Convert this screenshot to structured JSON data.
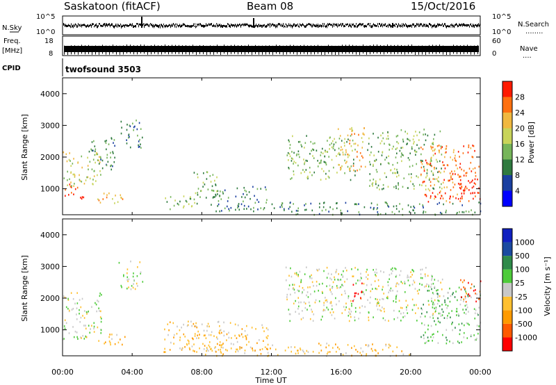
{
  "header": {
    "station": "Saskatoon (fitACF)",
    "beam": "Beam 08",
    "date": "15/Oct/2016"
  },
  "sky_panel": {
    "label": "N.Sky",
    "right_label": "N.Search",
    "right_marker": "........",
    "ticks_left": [
      "10^5",
      "10^0"
    ],
    "ticks_right": [
      "10^5",
      "10^0"
    ]
  },
  "freq_panel": {
    "label_top": "Freq.",
    "label_unit": "[MHz]",
    "ticks_left": [
      "18",
      "8"
    ],
    "right_label": "Nave",
    "right_marker": "....",
    "ticks_right": [
      "60",
      "0"
    ]
  },
  "cpid_panel": {
    "label": "CPID",
    "program": "twofsound 3503"
  },
  "time_axis": {
    "label": "Time UT",
    "ticks": [
      "00:00",
      "04:00",
      "08:00",
      "12:00",
      "16:00",
      "20:00",
      "00:00"
    ]
  },
  "chart_data": [
    {
      "type": "heatmap",
      "name": "power",
      "ylabel": "Slant Range [km]",
      "yticks": [
        "4000",
        "3000",
        "2000",
        "1000"
      ],
      "ylim": [
        180,
        4500
      ],
      "xlim_hours": [
        0,
        24
      ],
      "colorbar": {
        "label": "Power [dB]",
        "ticks": [
          "28",
          "24",
          "20",
          "16",
          "12",
          "8",
          "4"
        ],
        "colors": [
          "#0000ff",
          "#1a3fa0",
          "#2f7a3f",
          "#76b55a",
          "#c8d45a",
          "#f0b840",
          "#ff7010",
          "#ff1a00"
        ]
      },
      "echo_regions": [
        {
          "t0": 0.1,
          "t1": 1.2,
          "r0": 700,
          "r1": 1200,
          "level": 7
        },
        {
          "t0": 0.0,
          "t1": 2.2,
          "r0": 1100,
          "r1": 2200,
          "level": 4
        },
        {
          "t0": 2.0,
          "t1": 3.6,
          "r0": 500,
          "r1": 900,
          "level": 5
        },
        {
          "t0": 1.5,
          "t1": 3.0,
          "r0": 1600,
          "r1": 2700,
          "level": 2
        },
        {
          "t0": 3.2,
          "t1": 4.6,
          "r0": 2300,
          "r1": 3200,
          "level": 2
        },
        {
          "t0": 5.8,
          "t1": 7.9,
          "r0": 350,
          "r1": 800,
          "level": 3
        },
        {
          "t0": 7.5,
          "t1": 9.0,
          "r0": 700,
          "r1": 1600,
          "level": 3
        },
        {
          "t0": 8.5,
          "t1": 11.8,
          "r0": 300,
          "r1": 1100,
          "level": 2
        },
        {
          "t0": 12.8,
          "t1": 16.8,
          "r0": 1300,
          "r1": 2700,
          "level": 3
        },
        {
          "t0": 15.8,
          "t1": 17.4,
          "r0": 1600,
          "r1": 3000,
          "level": 5
        },
        {
          "t0": 17.5,
          "t1": 21.8,
          "r0": 1000,
          "r1": 2900,
          "level": 3
        },
        {
          "t0": 20.5,
          "t1": 23.9,
          "r0": 600,
          "r1": 2400,
          "level": 6
        },
        {
          "t0": 22.2,
          "t1": 24.0,
          "r0": 700,
          "r1": 1500,
          "level": 7
        },
        {
          "t0": 12.0,
          "t1": 24.0,
          "r0": 200,
          "r1": 600,
          "level": 2
        }
      ]
    },
    {
      "type": "heatmap",
      "name": "velocity",
      "ylabel": "Slant Range [km]",
      "yticks": [
        "4000",
        "3000",
        "2000",
        "1000"
      ],
      "ylim": [
        180,
        4500
      ],
      "xlim_hours": [
        0,
        24
      ],
      "colorbar": {
        "label": "Velocity [m s⁻¹]",
        "ticks": [
          "1000",
          "500",
          "100",
          "25",
          "-25",
          "-100",
          "-500",
          "-1000"
        ],
        "colors": [
          "#ff0000",
          "#ff5a00",
          "#ff9a00",
          "#ffc030",
          "#c8c8c8",
          "#4ecb3a",
          "#2f8a4a",
          "#1a4aa0",
          "#1020c0"
        ]
      },
      "echo_regions": [
        {
          "t0": 0.0,
          "t1": 2.2,
          "r0": 700,
          "r1": 2200,
          "level": 4
        },
        {
          "t0": 2.0,
          "t1": 3.6,
          "r0": 500,
          "r1": 900,
          "level": 3
        },
        {
          "t0": 3.2,
          "t1": 4.6,
          "r0": 2300,
          "r1": 3200,
          "level": 4
        },
        {
          "t0": 5.8,
          "t1": 11.8,
          "r0": 300,
          "r1": 1300,
          "level": 3
        },
        {
          "t0": 12.8,
          "t1": 21.8,
          "r0": 1300,
          "r1": 3000,
          "level": 4
        },
        {
          "t0": 16.6,
          "t1": 17.4,
          "r0": 1900,
          "r1": 2500,
          "level": 0
        },
        {
          "t0": 20.5,
          "t1": 24.0,
          "r0": 600,
          "r1": 2400,
          "level": 5
        },
        {
          "t0": 22.8,
          "t1": 24.0,
          "r0": 1800,
          "r1": 2600,
          "level": 1
        },
        {
          "t0": 8.0,
          "t1": 20.0,
          "r0": 200,
          "r1": 600,
          "level": 3
        }
      ]
    }
  ]
}
